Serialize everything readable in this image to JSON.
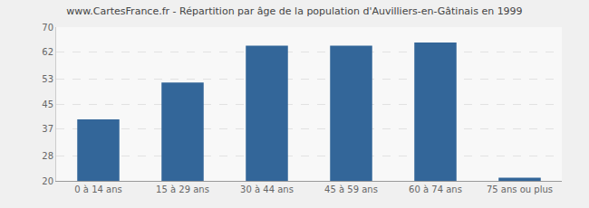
{
  "chart_data": {
    "type": "bar",
    "title": "www.CartesFrance.fr - Répartition par âge de la population d'Auvilliers-en-Gâtinais en 1999",
    "categories": [
      "0 à 14 ans",
      "15 à 29 ans",
      "30 à 44 ans",
      "45 à 59 ans",
      "60 à 74 ans",
      "75 ans ou plus"
    ],
    "values": [
      40,
      52,
      64,
      64,
      65,
      21
    ],
    "color": "#336699",
    "ylim": [
      20,
      70
    ],
    "yticks": [
      20,
      28,
      37,
      45,
      53,
      62,
      70
    ],
    "grid": true
  }
}
